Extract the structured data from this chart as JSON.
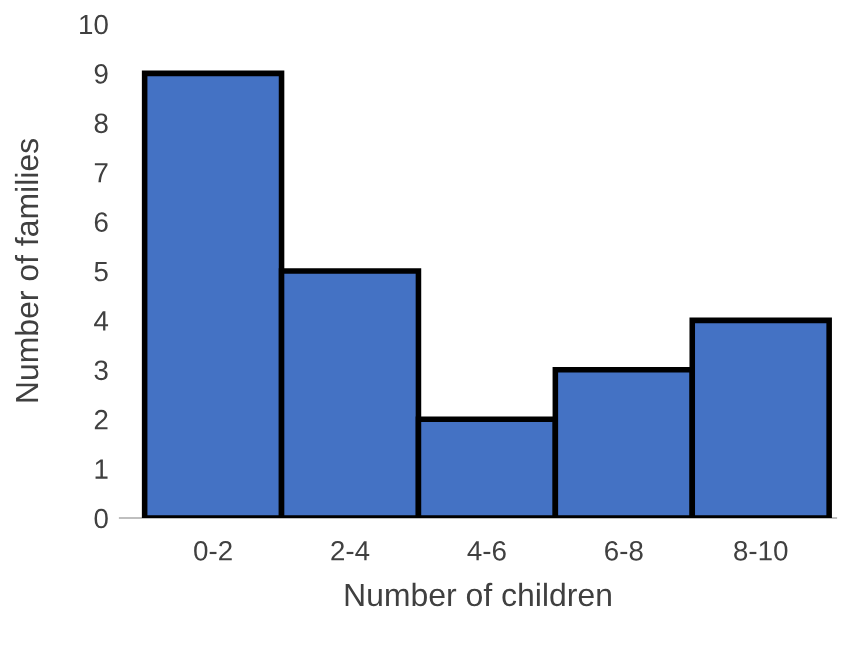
{
  "chart_data": {
    "type": "bar",
    "xlabel": "Number of children",
    "ylabel": "Number of families",
    "categories": [
      "0-2",
      "2-4",
      "4-6",
      "6-8",
      "8-10"
    ],
    "values": [
      9,
      5,
      2,
      3,
      4
    ],
    "color": "#4472c4",
    "ylim": [
      0,
      10
    ],
    "yticks": [
      0,
      1,
      2,
      3,
      4,
      5,
      6,
      7,
      8,
      9,
      10
    ],
    "grid": false
  }
}
